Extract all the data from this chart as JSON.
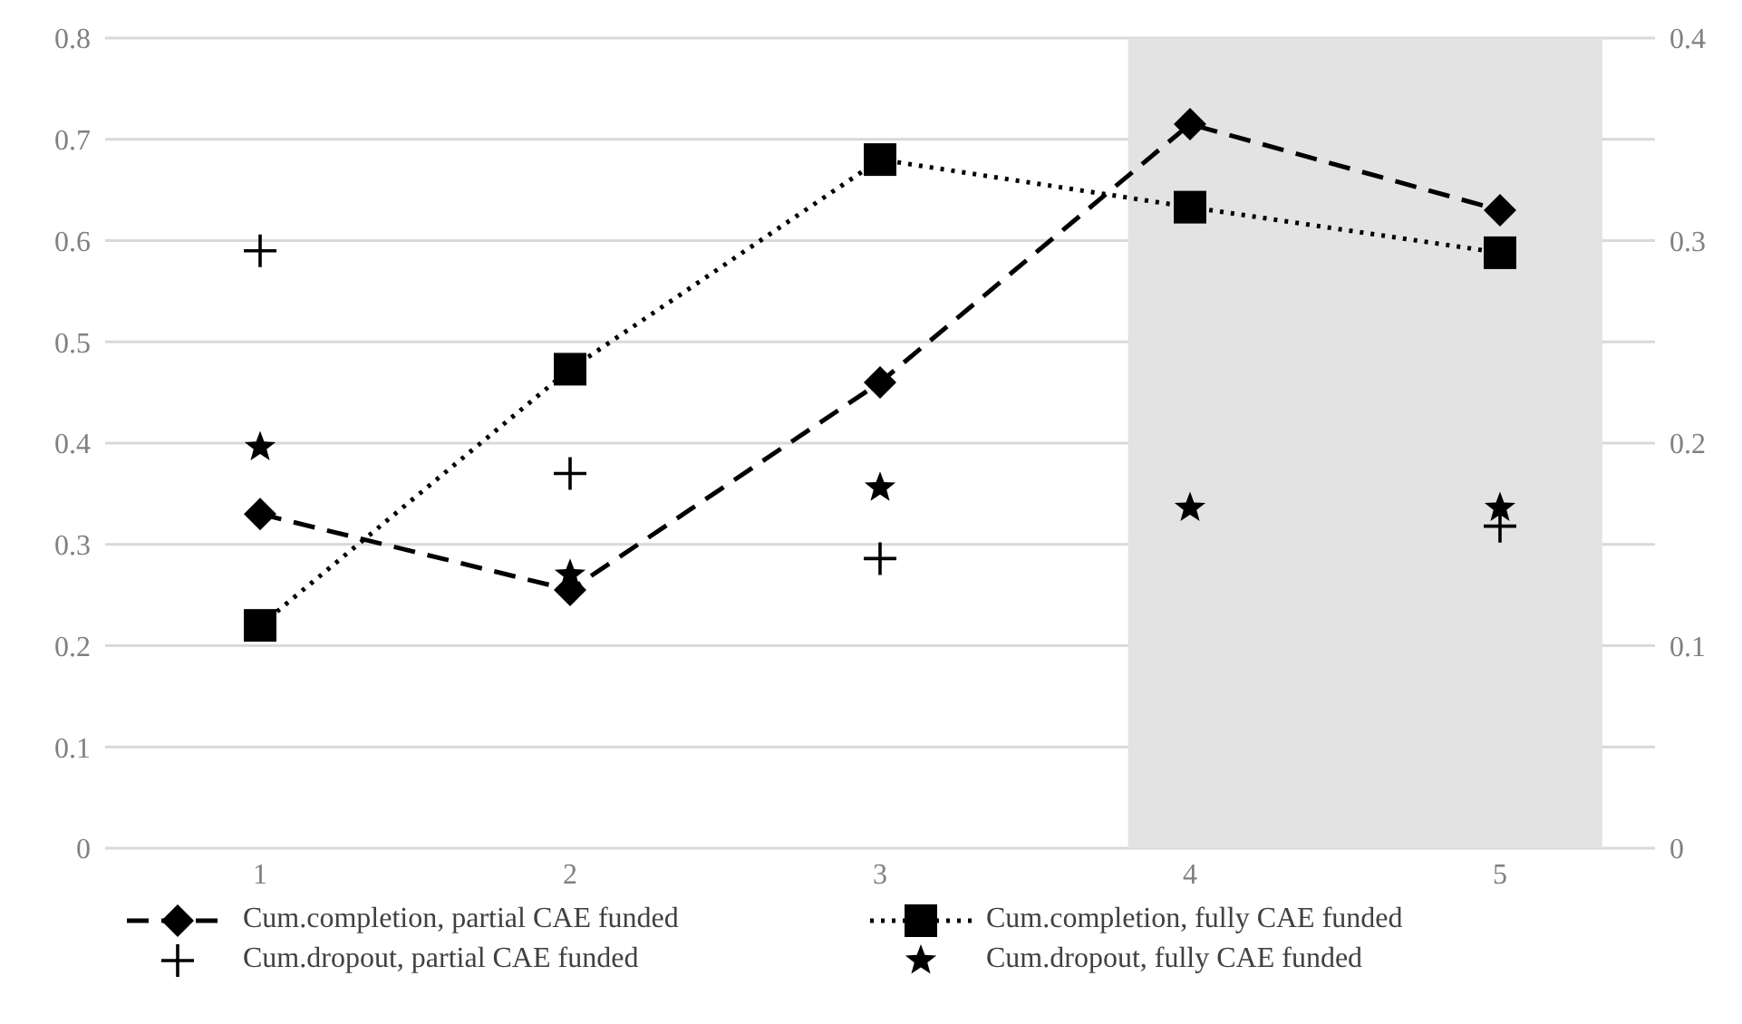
{
  "chart_data": {
    "type": "line",
    "x": [
      1,
      2,
      3,
      4,
      5
    ],
    "xlim": [
      0.5,
      5.5
    ],
    "xticks": [
      1,
      2,
      3,
      4,
      5
    ],
    "ylim": [
      0,
      0.8
    ],
    "yticks": [
      0,
      0.1,
      0.2,
      0.3,
      0.4,
      0.5,
      0.6,
      0.7,
      0.8
    ],
    "y2lim": [
      0,
      0.4
    ],
    "y2ticks": [
      0,
      0.1,
      0.2,
      0.3,
      0.4
    ],
    "grid": "y",
    "legend": "bottom",
    "bands": [
      {
        "axis": "x",
        "from": 3.8,
        "to": 5.33,
        "color": "#e3e3e3"
      }
    ],
    "series": [
      {
        "name": "Cum.completion, partial CAE funded",
        "color": "#000000",
        "marker": "diamond",
        "line_style": "dashed",
        "values": [
          0.33,
          0.255,
          0.46,
          0.715,
          0.63
        ]
      },
      {
        "name": "Cum.completion, fully CAE funded",
        "color": "#000000",
        "marker": "square",
        "line_style": "dotted",
        "values": [
          0.22,
          0.473,
          0.68,
          0.633,
          0.588
        ]
      },
      {
        "name": "Cum.dropout, partial CAE funded",
        "type": "scatter",
        "axis": "y2",
        "color": "#000000",
        "marker": "cross",
        "values": [
          0.295,
          0.185,
          0.143,
          null,
          0.159
        ]
      },
      {
        "name": "Cum.dropout, fully CAE funded",
        "type": "scatter",
        "axis": "y2",
        "color": "#000000",
        "marker": "star",
        "values": [
          0.198,
          0.135,
          0.178,
          0.168,
          0.168
        ]
      }
    ]
  }
}
